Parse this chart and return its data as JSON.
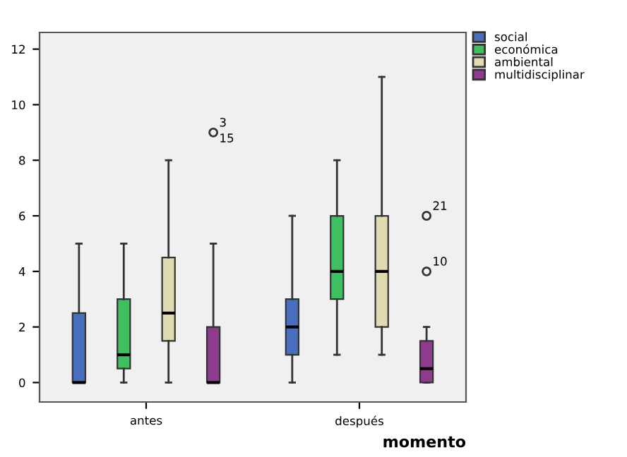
{
  "chart_data": {
    "type": "box",
    "xlabel": "momento",
    "categories": [
      "antes",
      "después"
    ],
    "ylim": [
      -0.7,
      12.6
    ],
    "yticks": [
      0,
      2,
      4,
      6,
      8,
      10,
      12
    ],
    "legend": "top right",
    "grid": false,
    "series": [
      {
        "name": "social",
        "color": "#4a6ebf",
        "boxes": [
          {
            "low": 0,
            "q1": 0,
            "median": 0,
            "q3": 2.5,
            "high": 5
          },
          {
            "low": 0,
            "q1": 1,
            "median": 2,
            "q3": 3,
            "high": 6
          }
        ]
      },
      {
        "name": "económica",
        "color": "#3fbf5f",
        "boxes": [
          {
            "low": 0,
            "q1": 0.5,
            "median": 1,
            "q3": 3,
            "high": 5
          },
          {
            "low": 1,
            "q1": 3,
            "median": 4,
            "q3": 6,
            "high": 8
          }
        ]
      },
      {
        "name": "ambiental",
        "color": "#e0dbb0",
        "boxes": [
          {
            "low": 0,
            "q1": 1.5,
            "median": 2.5,
            "q3": 4.5,
            "high": 8
          },
          {
            "low": 1,
            "q1": 2,
            "median": 4,
            "q3": 6,
            "high": 11
          }
        ]
      },
      {
        "name": "multidisciplinar",
        "color": "#8e3b8e",
        "boxes": [
          {
            "low": 0,
            "q1": 0,
            "median": 0,
            "q3": 2,
            "high": 5,
            "outliers": [
              9
            ]
          },
          {
            "low": 0,
            "q1": 0,
            "median": 0.5,
            "q3": 1.5,
            "high": 2,
            "outliers": [
              4,
              6
            ]
          }
        ]
      }
    ],
    "annotations": [
      "3",
      "15",
      "10",
      "21"
    ]
  }
}
